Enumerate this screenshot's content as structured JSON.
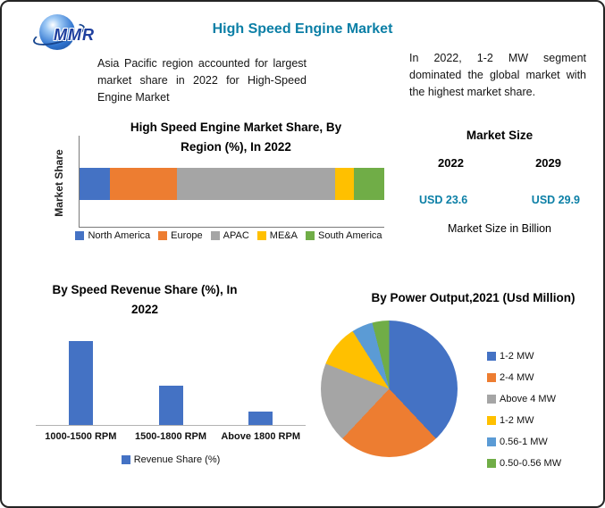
{
  "page": {
    "title": "High Speed Engine Market",
    "logo_text": "MMR",
    "accent_color": "#0b7fa6",
    "left_note": "Asia Pacific region accounted for largest market share in 2022 for High-Speed Engine Market",
    "right_note": "In 2022, 1-2 MW segment dominated the global market with the highest market share."
  },
  "market_size": {
    "heading": "Market Size",
    "years": [
      "2022",
      "2029"
    ],
    "values": [
      "USD 23.6",
      "USD 29.9"
    ],
    "unit_label": "Market Size in Billion"
  },
  "chart_data": [
    {
      "id": "region_share",
      "type": "bar",
      "subtype": "stacked-horizontal",
      "title": "High Speed Engine Market Share, By Region (%), In 2022",
      "ylabel": "Market Share",
      "categories": [
        "North America",
        "Europe",
        "APAC",
        "ME&A",
        "South America"
      ],
      "values": [
        10,
        22,
        52,
        6,
        10
      ],
      "colors": [
        "#4472C4",
        "#ED7D31",
        "#A5A5A5",
        "#FFC000",
        "#70AD47"
      ],
      "xlim": [
        0,
        100
      ],
      "legend_position": "bottom"
    },
    {
      "id": "speed_revenue",
      "type": "bar",
      "title": "By Speed Revenue Share (%), In 2022",
      "series_name": "Revenue Share (%)",
      "categories": [
        "1000-1500 RPM",
        "1500-1800 RPM",
        "Above 1800 RPM"
      ],
      "values": [
        45,
        21,
        7
      ],
      "color": "#4472C4",
      "ylim": [
        0,
        50
      ],
      "legend_position": "bottom"
    },
    {
      "id": "power_output",
      "type": "pie",
      "title": "By Power Output,2021 (Usd Million)",
      "categories": [
        "1-2 MW",
        "2-4 MW",
        "Above 4 MW",
        "1-2 MW",
        "0.56-1 MW",
        "0.50-0.56 MW"
      ],
      "values": [
        38,
        24,
        19,
        10,
        5,
        4
      ],
      "colors": [
        "#4472C4",
        "#ED7D31",
        "#A5A5A5",
        "#FFC000",
        "#5B9BD5",
        "#70AD47"
      ],
      "legend_position": "right"
    }
  ]
}
